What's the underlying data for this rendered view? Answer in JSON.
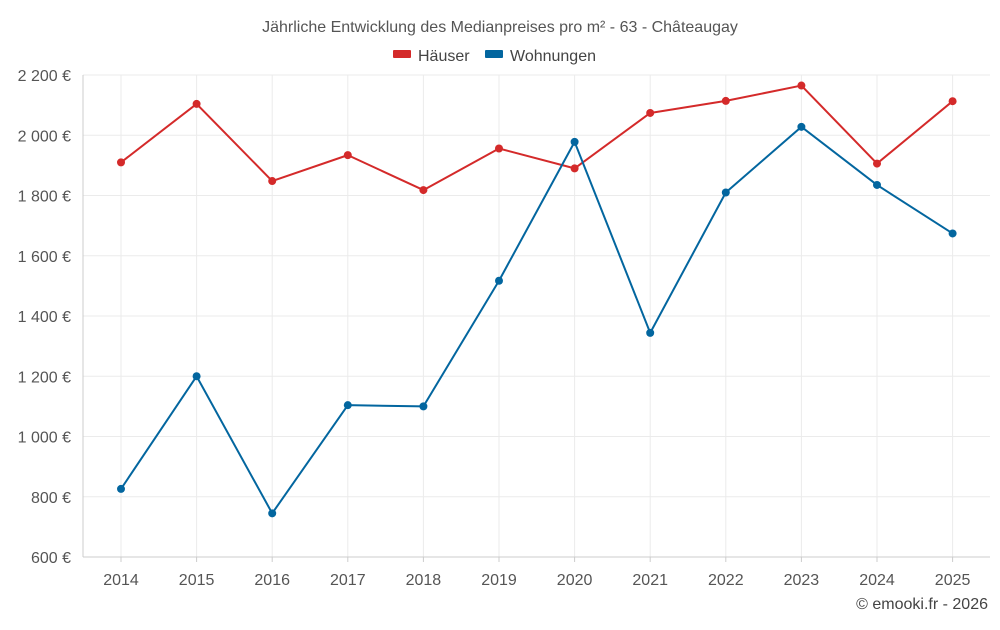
{
  "chart_data": {
    "type": "line",
    "title": "Jährliche Entwicklung des Medianpreises pro m² - 63 - Châteaugay",
    "x": [
      "2014",
      "2015",
      "2016",
      "2017",
      "2018",
      "2019",
      "2020",
      "2021",
      "2022",
      "2023",
      "2024",
      "2025"
    ],
    "y_ticks": [
      600,
      800,
      1000,
      1200,
      1400,
      1600,
      1800,
      2000,
      2200
    ],
    "y_tick_labels": [
      "600 €",
      "800 €",
      "1 000 €",
      "1 200 €",
      "1 400 €",
      "1 600 €",
      "1 800 €",
      "2 000 €",
      "2 200 €"
    ],
    "ylim": [
      600,
      2200
    ],
    "xlabel": "",
    "ylabel": "",
    "grid": true,
    "legend_position": "top-center",
    "series": [
      {
        "name": "Häuser",
        "color": "#d42a2a",
        "values": [
          1910,
          2104,
          1848,
          1934,
          1818,
          1956,
          1890,
          2074,
          2114,
          2165,
          1906,
          2113
        ]
      },
      {
        "name": "Wohnungen",
        "color": "#03669f",
        "values": [
          826,
          1200,
          745,
          1104,
          1100,
          1517,
          1978,
          1344,
          1810,
          2028,
          1835,
          1674
        ]
      }
    ]
  },
  "credit": "© emooki.fr - 2026"
}
